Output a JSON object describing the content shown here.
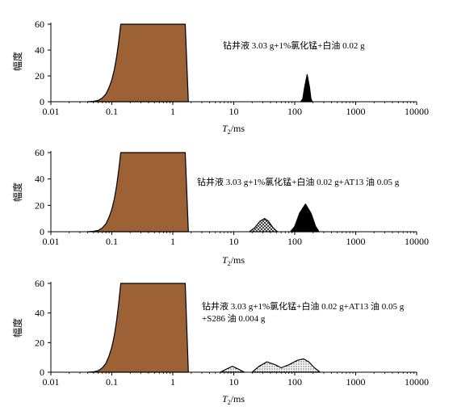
{
  "chart_data": [
    {
      "type": "area",
      "ylabel": "幅度",
      "xlabel": "T2/ms",
      "xlabel_main": "T",
      "xlabel_sub": "2",
      "xlabel_unit": "/ms",
      "x_scale": "log",
      "xlim": [
        0.01,
        10000
      ],
      "ylim": [
        0,
        60
      ],
      "yticks": [
        0,
        20,
        40,
        60
      ],
      "xticks": [
        0.01,
        0.1,
        1,
        10,
        100,
        1000,
        10000
      ],
      "xtick_labels": [
        "0.01",
        "0.1",
        "1",
        "10",
        "100",
        "1000",
        "10000"
      ],
      "annotation_lines": [
        "钻井液 3.03 g+1%氯化锰+白油 0.02 g"
      ],
      "series": [
        {
          "fill": "brown",
          "points": [
            [
              0.04,
              0
            ],
            [
              0.05,
              0.3
            ],
            [
              0.06,
              1
            ],
            [
              0.07,
              3
            ],
            [
              0.08,
              6
            ],
            [
              0.09,
              11
            ],
            [
              0.1,
              17
            ],
            [
              0.11,
              25
            ],
            [
              0.12,
              35
            ],
            [
              0.13,
              47
            ],
            [
              0.14,
              60
            ],
            [
              1.6,
              60
            ],
            [
              1.8,
              0
            ]
          ]
        },
        {
          "fill": "solid",
          "points": [
            [
              125,
              0
            ],
            [
              135,
              2
            ],
            [
              145,
              11
            ],
            [
              160,
              21
            ],
            [
              175,
              11
            ],
            [
              185,
              2
            ],
            [
              195,
              0
            ]
          ]
        }
      ]
    },
    {
      "type": "area",
      "ylabel": "幅度",
      "xlabel": "T2/ms",
      "xlabel_main": "T",
      "xlabel_sub": "2",
      "xlabel_unit": "/ms",
      "x_scale": "log",
      "xlim": [
        0.01,
        10000
      ],
      "ylim": [
        0,
        60
      ],
      "yticks": [
        0,
        20,
        40,
        60
      ],
      "xticks": [
        0.01,
        0.1,
        1,
        10,
        100,
        1000,
        10000
      ],
      "xtick_labels": [
        "0.01",
        "0.1",
        "1",
        "10",
        "100",
        "1000",
        "10000"
      ],
      "annotation_lines": [
        "钻井液 3.03 g+1%氯化锰+白油 0.02 g+AT13 油 0.05 g"
      ],
      "series": [
        {
          "fill": "brown",
          "points": [
            [
              0.04,
              0
            ],
            [
              0.05,
              0.3
            ],
            [
              0.06,
              1
            ],
            [
              0.07,
              3
            ],
            [
              0.08,
              6
            ],
            [
              0.09,
              11
            ],
            [
              0.1,
              17
            ],
            [
              0.11,
              25
            ],
            [
              0.12,
              35
            ],
            [
              0.13,
              47
            ],
            [
              0.14,
              60
            ],
            [
              1.6,
              60
            ],
            [
              1.8,
              0
            ]
          ]
        },
        {
          "fill": "hatch",
          "points": [
            [
              18,
              0
            ],
            [
              22,
              3
            ],
            [
              27,
              8
            ],
            [
              32,
              10
            ],
            [
              37,
              8
            ],
            [
              44,
              3
            ],
            [
              52,
              0
            ]
          ]
        },
        {
          "fill": "solid",
          "points": [
            [
              85,
              0
            ],
            [
              100,
              4
            ],
            [
              120,
              14
            ],
            [
              150,
              21
            ],
            [
              185,
              14
            ],
            [
              220,
              4
            ],
            [
              250,
              0
            ]
          ]
        }
      ]
    },
    {
      "type": "area",
      "ylabel": "幅度",
      "xlabel": "T2/ms",
      "xlabel_main": "T",
      "xlabel_sub": "2",
      "xlabel_unit": "/ms",
      "x_scale": "log",
      "xlim": [
        0.01,
        10000
      ],
      "ylim": [
        0,
        60
      ],
      "yticks": [
        0,
        20,
        40,
        60
      ],
      "xticks": [
        0.01,
        0.1,
        1,
        10,
        100,
        1000,
        10000
      ],
      "xtick_labels": [
        "0.01",
        "0.1",
        "1",
        "10",
        "100",
        "1000",
        "10000"
      ],
      "annotation_lines": [
        "钻井液 3.03 g+1%氯化锰+白油 0.02 g+AT13 油 0.05 g",
        "+S286 油 0.004 g"
      ],
      "series": [
        {
          "fill": "brown",
          "points": [
            [
              0.04,
              0
            ],
            [
              0.05,
              0.3
            ],
            [
              0.06,
              1
            ],
            [
              0.07,
              3
            ],
            [
              0.08,
              6
            ],
            [
              0.09,
              11
            ],
            [
              0.1,
              17
            ],
            [
              0.11,
              25
            ],
            [
              0.12,
              35
            ],
            [
              0.13,
              47
            ],
            [
              0.14,
              60
            ],
            [
              1.6,
              60
            ],
            [
              1.8,
              0
            ]
          ]
        },
        {
          "fill": "dots",
          "points": [
            [
              6,
              0
            ],
            [
              7.5,
              2
            ],
            [
              9.5,
              4
            ],
            [
              12,
              2
            ],
            [
              15,
              0
            ]
          ]
        },
        {
          "fill": "dots",
          "points": [
            [
              20,
              0
            ],
            [
              26,
              4
            ],
            [
              35,
              7
            ],
            [
              48,
              5
            ],
            [
              60,
              3
            ],
            [
              80,
              5
            ],
            [
              110,
              8
            ],
            [
              140,
              9
            ],
            [
              170,
              7
            ],
            [
              210,
              3
            ],
            [
              260,
              0
            ]
          ]
        }
      ]
    }
  ]
}
